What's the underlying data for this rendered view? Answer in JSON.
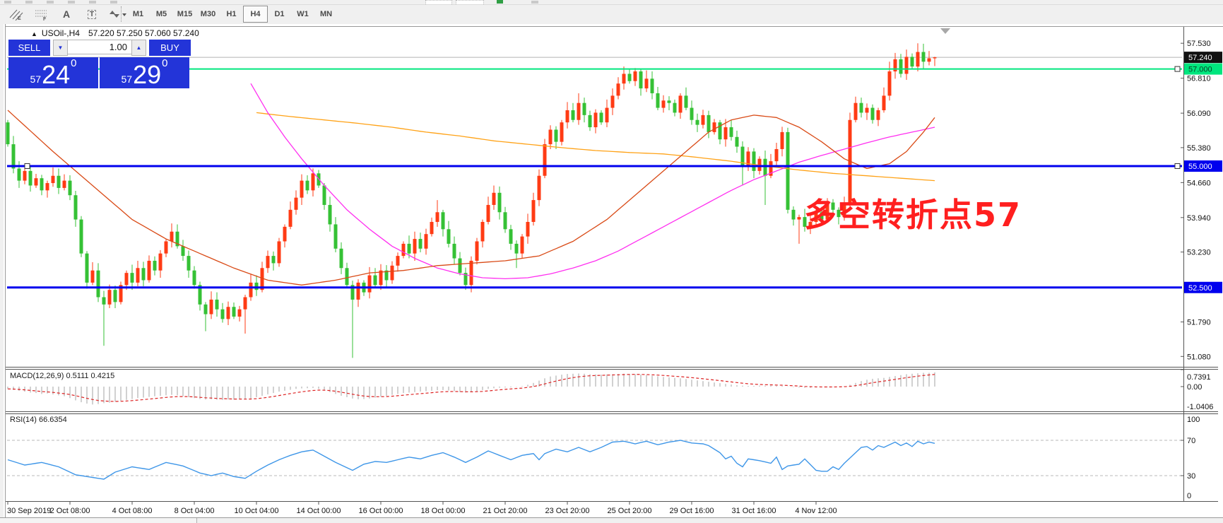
{
  "toolbar": {
    "icons": [
      {
        "name": "equidistant-channel-icon",
        "glyph": "E"
      },
      {
        "name": "fibonacci-icon",
        "glyph": "F"
      },
      {
        "name": "text-icon",
        "glyph": "A"
      },
      {
        "name": "text-label-icon",
        "glyph": "T"
      },
      {
        "name": "arrows-icon",
        "glyph": "▾"
      }
    ],
    "timeframes": [
      {
        "label": "M1",
        "active": false
      },
      {
        "label": "M5",
        "active": false
      },
      {
        "label": "M15",
        "active": false
      },
      {
        "label": "M30",
        "active": false
      },
      {
        "label": "H1",
        "active": false
      },
      {
        "label": "H4",
        "active": true
      },
      {
        "label": "D1",
        "active": false
      },
      {
        "label": "W1",
        "active": false
      },
      {
        "label": "MN",
        "active": false
      }
    ]
  },
  "chart": {
    "title": {
      "symbol": "USOil-,H4",
      "ohlc": "57.220 57.250 57.060 57.240"
    },
    "trade_panel": {
      "sell_label": "SELL",
      "buy_label": "BUY",
      "volume": "1.00",
      "sell_price": {
        "prefix": "57",
        "big": "24",
        "sup": "0"
      },
      "buy_price": {
        "prefix": "57",
        "big": "29",
        "sup": "0"
      }
    },
    "annotation": {
      "text": "多空转折点57",
      "color": "#ff1f1f"
    }
  },
  "indicators": {
    "macd": {
      "label": "MACD(12,26,9) 0.5111 0.4215",
      "scale": [
        "0.7391",
        "0.00",
        "-1.0406"
      ]
    },
    "rsi": {
      "label": "RSI(14) 66.6354",
      "scale": [
        "100",
        "70",
        "30",
        "0"
      ]
    }
  },
  "chart_data": {
    "type": "candlestick",
    "symbol": "USOil-",
    "timeframe": "H4",
    "current": {
      "open": 57.22,
      "high": 57.25,
      "low": 57.06,
      "close": 57.24,
      "bid": 57.24,
      "ask": 57.29
    },
    "y_ticks": [
      57.53,
      56.81,
      56.09,
      55.38,
      54.66,
      53.94,
      53.23,
      51.79,
      51.08
    ],
    "price_badges": [
      {
        "text": "57.240",
        "price": 57.24,
        "bg": "#111111",
        "fg": "#ffffff"
      },
      {
        "text": "57.000",
        "price": 57.0,
        "bg": "#00e67e",
        "fg": "#0b3d24"
      },
      {
        "text": "55.000",
        "price": 55.0,
        "bg": "#0000ee",
        "fg": "#ffffff"
      },
      {
        "text": "52.500",
        "price": 52.5,
        "bg": "#0000ee",
        "fg": "#ffffff"
      }
    ],
    "hlines": [
      {
        "price": 57.0,
        "color": "#00e67e",
        "width": 2,
        "handles": [
          1666
        ]
      },
      {
        "price": 55.0,
        "color": "#0000ee",
        "width": 3,
        "handles": [
          38,
          1666
        ]
      },
      {
        "price": 52.5,
        "color": "#0000ee",
        "width": 3,
        "handles": []
      }
    ],
    "current_price_line": {
      "price": 57.24,
      "color": "#b4b4b4"
    },
    "x_labels": [
      "30 Sep 2019",
      "2 Oct 08:00",
      "4 Oct 08:00",
      "8 Oct 04:00",
      "10 Oct 04:00",
      "14 Oct 00:00",
      "16 Oct 00:00",
      "18 Oct 00:00",
      "21 Oct 20:00",
      "23 Oct 20:00",
      "25 Oct 20:00",
      "29 Oct 16:00",
      "31 Oct 16:00",
      "4 Nov 12:00"
    ],
    "x_label_every_n_bars": 11,
    "colors": {
      "up": "#ff3b14",
      "down": "#35c135",
      "ma_fast": "#d94a16",
      "ma_mid": "#ff2ff0",
      "ma_slow": "#ffa216",
      "macd_hist": "#bdbdbd",
      "macd_signal": "#dd2222",
      "rsi": "#3e96e8"
    },
    "bars": {
      "open_first": 55.9,
      "closes": [
        55.45,
        54.95,
        54.7,
        54.9,
        54.6,
        54.75,
        54.5,
        54.65,
        54.8,
        54.55,
        54.7,
        54.4,
        53.9,
        53.2,
        52.6,
        52.85,
        52.3,
        52.15,
        52.45,
        52.2,
        52.55,
        52.8,
        52.6,
        52.9,
        52.65,
        53.05,
        52.85,
        53.2,
        53.45,
        53.65,
        53.35,
        53.15,
        52.85,
        52.55,
        52.15,
        51.95,
        52.25,
        52.05,
        51.85,
        52.1,
        51.9,
        52.05,
        52.3,
        52.6,
        52.45,
        52.9,
        53.15,
        53.0,
        53.45,
        53.75,
        54.1,
        54.35,
        54.7,
        54.5,
        54.85,
        54.6,
        54.2,
        53.8,
        53.3,
        52.9,
        52.55,
        52.25,
        52.6,
        52.4,
        52.75,
        52.55,
        52.85,
        52.65,
        52.95,
        53.15,
        53.4,
        53.2,
        53.5,
        53.3,
        53.6,
        53.85,
        54.05,
        53.7,
        53.4,
        53.1,
        52.8,
        52.55,
        53.05,
        53.45,
        53.85,
        54.2,
        54.45,
        54.05,
        53.7,
        53.4,
        53.2,
        53.55,
        53.85,
        54.3,
        54.8,
        55.45,
        55.75,
        55.5,
        55.9,
        56.15,
        55.95,
        56.3,
        56.05,
        55.8,
        56.1,
        55.9,
        56.2,
        56.45,
        56.7,
        56.9,
        56.75,
        56.95,
        56.6,
        56.8,
        56.5,
        56.2,
        56.35,
        56.3,
        56.1,
        56.45,
        56.2,
        55.95,
        55.85,
        56.05,
        55.7,
        55.9,
        55.55,
        55.8,
        55.6,
        55.4,
        55.0,
        55.3,
        54.9,
        55.15,
        54.8,
        55.1,
        55.35,
        55.7,
        54.1,
        53.9,
        53.95,
        53.75,
        53.85,
        54.05,
        53.9,
        54.25,
        54.1,
        53.95,
        54.2,
        55.95,
        56.3,
        56.1,
        56.2,
        55.95,
        56.15,
        56.45,
        56.95,
        57.2,
        56.9,
        57.25,
        57.05,
        57.35,
        57.15,
        57.22,
        57.24
      ],
      "high_overrides": {
        "54": 54.95,
        "76": 54.3,
        "86": 54.6,
        "101": 56.5,
        "109": 57.05,
        "156": 57.15,
        "159": 57.4,
        "161": 57.53,
        "164": 57.25
      },
      "low_overrides": {
        "17": 51.3,
        "35": 51.6,
        "42": 51.55,
        "61": 51.05,
        "90": 52.9,
        "130": 54.6,
        "134": 54.2,
        "140": 53.4,
        "164": 57.06
      }
    },
    "moving_averages": {
      "fast": [
        [
          0,
          56.15
        ],
        [
          8,
          55.3
        ],
        [
          16,
          54.5
        ],
        [
          22,
          53.9
        ],
        [
          28,
          53.5
        ],
        [
          34,
          53.2
        ],
        [
          40,
          52.9
        ],
        [
          46,
          52.65
        ],
        [
          52,
          52.55
        ],
        [
          58,
          52.65
        ],
        [
          64,
          52.8
        ],
        [
          70,
          52.85
        ],
        [
          76,
          52.95
        ],
        [
          82,
          53.0
        ],
        [
          88,
          53.05
        ],
        [
          94,
          53.15
        ],
        [
          100,
          53.45
        ],
        [
          106,
          53.9
        ],
        [
          112,
          54.5
        ],
        [
          118,
          55.1
        ],
        [
          124,
          55.7
        ],
        [
          128,
          55.95
        ],
        [
          132,
          56.05
        ],
        [
          136,
          56.0
        ],
        [
          140,
          55.8
        ],
        [
          144,
          55.5
        ],
        [
          148,
          55.15
        ],
        [
          152,
          54.95
        ],
        [
          156,
          55.05
        ],
        [
          159,
          55.3
        ],
        [
          162,
          55.7
        ],
        [
          164,
          56.0
        ]
      ],
      "mid": [
        [
          43,
          56.7
        ],
        [
          46,
          56.1
        ],
        [
          49,
          55.6
        ],
        [
          52,
          55.15
        ],
        [
          56,
          54.6
        ],
        [
          60,
          54.1
        ],
        [
          64,
          53.7
        ],
        [
          68,
          53.35
        ],
        [
          72,
          53.1
        ],
        [
          76,
          52.9
        ],
        [
          80,
          52.78
        ],
        [
          84,
          52.7
        ],
        [
          88,
          52.68
        ],
        [
          92,
          52.7
        ],
        [
          96,
          52.78
        ],
        [
          100,
          52.9
        ],
        [
          104,
          53.05
        ],
        [
          108,
          53.25
        ],
        [
          112,
          53.5
        ],
        [
          116,
          53.75
        ],
        [
          120,
          54.0
        ],
        [
          124,
          54.25
        ],
        [
          128,
          54.5
        ],
        [
          132,
          54.72
        ],
        [
          136,
          54.9
        ],
        [
          140,
          55.08
        ],
        [
          144,
          55.22
        ],
        [
          148,
          55.35
        ],
        [
          152,
          55.48
        ],
        [
          156,
          55.6
        ],
        [
          160,
          55.7
        ],
        [
          164,
          55.8
        ]
      ],
      "slow": [
        [
          44,
          56.1
        ],
        [
          50,
          56.02
        ],
        [
          56,
          55.95
        ],
        [
          62,
          55.88
        ],
        [
          68,
          55.8
        ],
        [
          74,
          55.7
        ],
        [
          80,
          55.62
        ],
        [
          86,
          55.52
        ],
        [
          92,
          55.45
        ],
        [
          98,
          55.38
        ],
        [
          104,
          55.32
        ],
        [
          110,
          55.28
        ],
        [
          116,
          55.25
        ],
        [
          122,
          55.18
        ],
        [
          128,
          55.1
        ],
        [
          134,
          55.0
        ],
        [
          140,
          54.92
        ],
        [
          146,
          54.85
        ],
        [
          152,
          54.8
        ],
        [
          158,
          54.75
        ],
        [
          164,
          54.7
        ]
      ]
    },
    "macd": {
      "params": "12,26,9",
      "current_macd": 0.5111,
      "current_signal": 0.4215,
      "range": [
        -1.0406,
        0.7391
      ],
      "hist": [
        -0.1,
        -0.14,
        -0.18,
        -0.22,
        -0.26,
        -0.28,
        -0.32,
        -0.3,
        -0.34,
        -0.38,
        -0.42,
        -0.5,
        -0.6,
        -0.68,
        -0.74,
        -0.78,
        -0.76,
        -0.72,
        -0.7,
        -0.66,
        -0.62,
        -0.58,
        -0.54,
        -0.5,
        -0.48,
        -0.45,
        -0.42,
        -0.4,
        -0.38,
        -0.36,
        -0.38,
        -0.42,
        -0.46,
        -0.5,
        -0.54,
        -0.56,
        -0.55,
        -0.57,
        -0.58,
        -0.56,
        -0.57,
        -0.55,
        -0.56,
        -0.52,
        -0.46,
        -0.4,
        -0.34,
        -0.28,
        -0.22,
        -0.18,
        -0.14,
        -0.1,
        -0.08,
        -0.07,
        -0.06,
        -0.1,
        -0.16,
        -0.24,
        -0.32,
        -0.4,
        -0.46,
        -0.52,
        -0.55,
        -0.54,
        -0.52,
        -0.48,
        -0.44,
        -0.4,
        -0.36,
        -0.32,
        -0.28,
        -0.26,
        -0.24,
        -0.22,
        -0.2,
        -0.18,
        -0.16,
        -0.15,
        -0.17,
        -0.2,
        -0.24,
        -0.26,
        -0.24,
        -0.2,
        -0.15,
        -0.1,
        -0.07,
        -0.05,
        -0.04,
        -0.03,
        -0.01,
        0.02,
        0.08,
        0.16,
        0.26,
        0.36,
        0.44,
        0.48,
        0.52,
        0.55,
        0.56,
        0.57,
        0.56,
        0.54,
        0.53,
        0.52,
        0.53,
        0.54,
        0.55,
        0.56,
        0.55,
        0.54,
        0.52,
        0.5,
        0.48,
        0.45,
        0.42,
        0.4,
        0.38,
        0.36,
        0.33,
        0.3,
        0.27,
        0.24,
        0.21,
        0.18,
        0.15,
        0.12,
        0.09,
        0.06,
        0.04,
        0.03,
        0.03,
        0.04,
        0.04,
        0.05,
        0.04,
        0.03,
        0.01,
        -0.02,
        -0.04,
        -0.05,
        -0.05,
        -0.04,
        -0.03,
        -0.02,
        -0.01,
        0.0,
        0.02,
        0.08,
        0.16,
        0.24,
        0.3,
        0.34,
        0.36,
        0.38,
        0.42,
        0.46,
        0.5,
        0.54,
        0.56,
        0.58,
        0.6,
        0.6,
        0.62
      ],
      "signal_period": 9
    },
    "rsi": {
      "period": 14,
      "current": 66.6354,
      "levels": [
        70,
        30
      ],
      "anchors": [
        [
          0,
          48
        ],
        [
          3,
          42
        ],
        [
          6,
          45
        ],
        [
          9,
          40
        ],
        [
          12,
          31
        ],
        [
          15,
          28
        ],
        [
          17,
          26
        ],
        [
          19,
          34
        ],
        [
          22,
          40
        ],
        [
          25,
          37
        ],
        [
          28,
          45
        ],
        [
          31,
          41
        ],
        [
          34,
          33
        ],
        [
          36,
          30
        ],
        [
          38,
          33
        ],
        [
          40,
          29
        ],
        [
          42,
          27
        ],
        [
          44,
          35
        ],
        [
          46,
          42
        ],
        [
          48,
          48
        ],
        [
          50,
          53
        ],
        [
          52,
          57
        ],
        [
          54,
          59
        ],
        [
          56,
          52
        ],
        [
          58,
          45
        ],
        [
          60,
          39
        ],
        [
          61,
          36
        ],
        [
          63,
          43
        ],
        [
          65,
          46
        ],
        [
          67,
          45
        ],
        [
          69,
          48
        ],
        [
          71,
          51
        ],
        [
          73,
          49
        ],
        [
          75,
          53
        ],
        [
          77,
          56
        ],
        [
          79,
          51
        ],
        [
          81,
          45
        ],
        [
          83,
          51
        ],
        [
          85,
          58
        ],
        [
          87,
          53
        ],
        [
          89,
          48
        ],
        [
          91,
          53
        ],
        [
          93,
          55
        ],
        [
          94,
          48
        ],
        [
          95,
          55
        ],
        [
          97,
          60
        ],
        [
          99,
          57
        ],
        [
          101,
          62
        ],
        [
          103,
          57
        ],
        [
          105,
          62
        ],
        [
          107,
          68
        ],
        [
          109,
          69
        ],
        [
          111,
          66
        ],
        [
          113,
          69
        ],
        [
          115,
          65
        ],
        [
          117,
          68
        ],
        [
          119,
          70
        ],
        [
          121,
          67
        ],
        [
          123,
          66
        ],
        [
          124,
          64
        ],
        [
          126,
          56
        ],
        [
          127,
          49
        ],
        [
          128,
          52
        ],
        [
          129,
          44
        ],
        [
          130,
          40
        ],
        [
          131,
          49
        ],
        [
          133,
          47
        ],
        [
          135,
          44
        ],
        [
          136,
          51
        ],
        [
          137,
          37
        ],
        [
          138,
          41
        ],
        [
          140,
          43
        ],
        [
          141,
          49
        ],
        [
          143,
          36
        ],
        [
          144,
          35
        ],
        [
          145,
          35
        ],
        [
          146,
          40
        ],
        [
          147,
          37
        ],
        [
          148,
          44
        ],
        [
          149,
          50
        ],
        [
          150,
          56
        ],
        [
          151,
          62
        ],
        [
          152,
          63
        ],
        [
          153,
          59
        ],
        [
          154,
          64
        ],
        [
          155,
          62
        ],
        [
          156,
          65
        ],
        [
          157,
          68
        ],
        [
          158,
          64
        ],
        [
          159,
          67
        ],
        [
          160,
          63
        ],
        [
          161,
          69
        ],
        [
          162,
          66
        ],
        [
          163,
          68
        ],
        [
          164,
          66.6
        ]
      ]
    }
  }
}
